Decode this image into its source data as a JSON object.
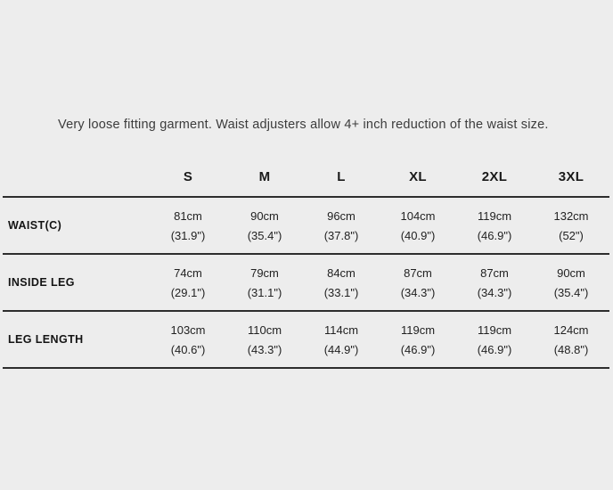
{
  "description": "Very loose fitting garment. Waist adjusters allow 4+ inch reduction of the waist size.",
  "colors": {
    "background": "#ededed",
    "text": "#222222",
    "bold_text": "#141414",
    "muted_text": "#3c3c3c",
    "rule": "#2d2d2d"
  },
  "size_chart": {
    "columns": [
      "S",
      "M",
      "L",
      "XL",
      "2XL",
      "3XL"
    ],
    "rows": [
      {
        "label": "WAIST(C)",
        "cm": [
          "81cm",
          "90cm",
          "96cm",
          "104cm",
          "119cm",
          "132cm"
        ],
        "in": [
          "(31.9\")",
          "(35.4\")",
          "(37.8\")",
          "(40.9\")",
          "(46.9\")",
          "(52\")"
        ]
      },
      {
        "label": "INSIDE LEG",
        "cm": [
          "74cm",
          "79cm",
          "84cm",
          "87cm",
          "87cm",
          "90cm"
        ],
        "in": [
          "(29.1\")",
          "(31.1\")",
          "(33.1\")",
          "(34.3\")",
          "(34.3\")",
          "(35.4\")"
        ]
      },
      {
        "label": "LEG LENGTH",
        "cm": [
          "103cm",
          "110cm",
          "114cm",
          "119cm",
          "119cm",
          "124cm"
        ],
        "in": [
          "(40.6\")",
          "(43.3\")",
          "(44.9\")",
          "(46.9\")",
          "(46.9\")",
          "(48.8\")"
        ]
      }
    ]
  }
}
